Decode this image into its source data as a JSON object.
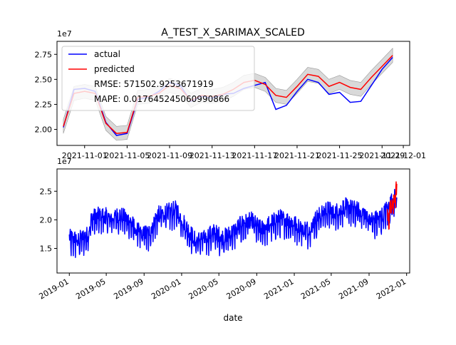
{
  "chart_data": [
    {
      "type": "line",
      "title": "A_TEST_X_SARIMAX_SCALED",
      "scale_label": "1e7",
      "xlabel": "",
      "ylabel": "",
      "ylim": [
        1.84,
        2.88
      ],
      "x_ticks": [
        "2021-11-01",
        "2021-11-05",
        "2021-11-09",
        "2021-11-13",
        "2021-11-17",
        "2021-11-21",
        "2021-11-25",
        "2021-11-29",
        "2021-12-01"
      ],
      "y_ticks": [
        "2.00",
        "2.25",
        "2.50",
        "2.75"
      ],
      "y_tick_values": [
        2.0,
        2.25,
        2.5,
        2.75
      ],
      "x": [
        "2021-10-30",
        "2021-10-31",
        "2021-11-01",
        "2021-11-02",
        "2021-11-03",
        "2021-11-04",
        "2021-11-05",
        "2021-11-06",
        "2021-11-07",
        "2021-11-08",
        "2021-11-09",
        "2021-11-10",
        "2021-11-11",
        "2021-11-12",
        "2021-11-13",
        "2021-11-14",
        "2021-11-15",
        "2021-11-16",
        "2021-11-17",
        "2021-11-18",
        "2021-11-19",
        "2021-11-20",
        "2021-11-21",
        "2021-11-22",
        "2021-11-23",
        "2021-11-24",
        "2021-11-25",
        "2021-11-26",
        "2021-11-27",
        "2021-11-28",
        "2021-11-29",
        "2021-11-30"
      ],
      "series": [
        {
          "name": "actual",
          "color": "#0000ff",
          "values": [
            2.02,
            2.4,
            2.41,
            2.38,
            2.07,
            1.94,
            1.96,
            2.3,
            2.32,
            2.38,
            2.47,
            2.44,
            2.28,
            2.33,
            2.31,
            2.35,
            2.36,
            2.41,
            2.44,
            2.47,
            2.2,
            2.24,
            2.38,
            2.5,
            2.47,
            2.35,
            2.37,
            2.27,
            2.28,
            2.44,
            2.6,
            2.72
          ]
        },
        {
          "name": "predicted",
          "color": "#ff0000",
          "values": [
            2.03,
            2.36,
            2.38,
            2.36,
            2.06,
            1.96,
            1.97,
            2.32,
            2.33,
            2.36,
            2.44,
            2.41,
            2.29,
            2.34,
            2.33,
            2.35,
            2.4,
            2.47,
            2.49,
            2.45,
            2.34,
            2.32,
            2.43,
            2.55,
            2.53,
            2.43,
            2.47,
            2.42,
            2.4,
            2.52,
            2.63,
            2.74
          ]
        }
      ],
      "confidence_band": {
        "color": "#cccccc",
        "half_width": 0.07
      },
      "annotations": [
        "RMSE: 571502.9253671919",
        "MAPE: 0.017645245060990866"
      ],
      "legend": [
        "actual",
        "predicted"
      ],
      "legend_position": "upper-left",
      "grid": false
    },
    {
      "type": "line",
      "title": "",
      "scale_label": "1e7",
      "xlabel": "date",
      "ylabel": "",
      "ylim": [
        1.07,
        2.89
      ],
      "x_ticks": [
        "2019-01",
        "2019-05",
        "2019-09",
        "2020-01",
        "2020-05",
        "2020-09",
        "2021-01",
        "2021-05",
        "2021-09",
        "2022-01"
      ],
      "y_ticks": [
        "1.5",
        "2.0",
        "2.5"
      ],
      "y_tick_values": [
        1.5,
        2.0,
        2.5
      ],
      "x_range": [
        "2019-01-01",
        "2021-11-30"
      ],
      "series": [
        {
          "name": "actual",
          "color": "#0000ff",
          "description": "daily values 2019-01-01 to 2021-11-30",
          "control_points": [
            [
              "2019-01-01",
              1.65
            ],
            [
              "2019-02-01",
              1.62
            ],
            [
              "2019-03-01",
              1.7
            ],
            [
              "2019-03-15",
              2.0
            ],
            [
              "2019-04-15",
              2.05
            ],
            [
              "2019-05-15",
              2.0
            ],
            [
              "2019-06-15",
              2.05
            ],
            [
              "2019-07-15",
              1.95
            ],
            [
              "2019-08-15",
              1.75
            ],
            [
              "2019-09-15",
              1.72
            ],
            [
              "2019-10-15",
              2.05
            ],
            [
              "2019-11-15",
              2.1
            ],
            [
              "2019-12-15",
              2.15
            ],
            [
              "2020-01-15",
              1.85
            ],
            [
              "2020-02-15",
              1.6
            ],
            [
              "2020-03-15",
              1.65
            ],
            [
              "2020-04-15",
              1.75
            ],
            [
              "2020-05-15",
              1.65
            ],
            [
              "2020-06-15",
              1.75
            ],
            [
              "2020-07-15",
              1.9
            ],
            [
              "2020-08-15",
              1.95
            ],
            [
              "2020-09-15",
              1.8
            ],
            [
              "2020-10-15",
              1.9
            ],
            [
              "2020-11-15",
              2.0
            ],
            [
              "2020-12-15",
              1.95
            ],
            [
              "2021-01-15",
              1.85
            ],
            [
              "2021-02-15",
              1.8
            ],
            [
              "2021-03-15",
              2.0
            ],
            [
              "2021-04-15",
              2.15
            ],
            [
              "2021-05-15",
              2.1
            ],
            [
              "2021-06-15",
              2.2
            ],
            [
              "2021-07-15",
              2.15
            ],
            [
              "2021-08-15",
              2.1
            ],
            [
              "2021-09-15",
              1.95
            ],
            [
              "2021-10-15",
              2.05
            ],
            [
              "2021-11-15",
              2.3
            ],
            [
              "2021-11-30",
              2.4
            ]
          ],
          "noise_amplitude": 0.28
        },
        {
          "name": "predicted",
          "color": "#ff0000",
          "description": "forecast 2021-10-30 to 2021-11-30",
          "control_points": [
            [
              "2021-10-30",
              2.05
            ],
            [
              "2021-11-10",
              2.15
            ],
            [
              "2021-11-20",
              2.3
            ],
            [
              "2021-11-30",
              2.55
            ]
          ],
          "noise_amplitude": 0.3
        }
      ],
      "legend": [],
      "grid": false
    }
  ]
}
